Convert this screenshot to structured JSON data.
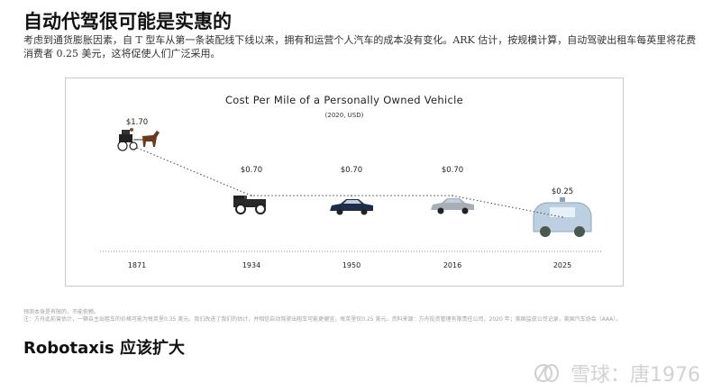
{
  "page": {
    "title": "自动代驾很可能是实惠的",
    "intro": "考虑到通货膨胀因素，自 T 型车从第一条装配线下线以来，拥有和运营个人汽车的成本没有变化。ARK 估计，按规模计算，自动驾驶出租车每英里将花费消费者 0.25 美元，这将促使人们广泛采用。",
    "footnote_line1": "预测本身是有限的，不能依赖。",
    "footnote_line2": "注：方舟此前曾估计，一辆自主出租车的价格可能为每英里0.35 美元。我们改进了我们的估计，并相信自动驾驶出租车可能更便宜，每英里仅0.25 美元。资料来源：方舟投资管理有限责任公司，2020 年；美国监皮公司记录，美国汽车协会（AAA）。",
    "subtitle": "Robotaxis 应该扩大",
    "watermark": "雪球：唐1976"
  },
  "chart_data": {
    "type": "line",
    "title": "Cost Per Mile of a Personally Owned Vehicle",
    "subtitle": "(2020, USD)",
    "categories": [
      "1871",
      "1934",
      "1950",
      "2016",
      "2025"
    ],
    "values": [
      1.7,
      0.7,
      0.7,
      0.7,
      0.25
    ],
    "value_labels": [
      "$1.70",
      "$0.70",
      "$0.70",
      "$0.70",
      "$0.25"
    ],
    "line_style": "dotted",
    "baseline_style": "dotted",
    "icons": [
      "horse-carriage-icon",
      "model-t-car-icon",
      "vintage-sedan-icon",
      "modern-sedan-icon",
      "robotaxi-pod-icon"
    ],
    "ylim": [
      0,
      1.8
    ],
    "grid": false
  }
}
